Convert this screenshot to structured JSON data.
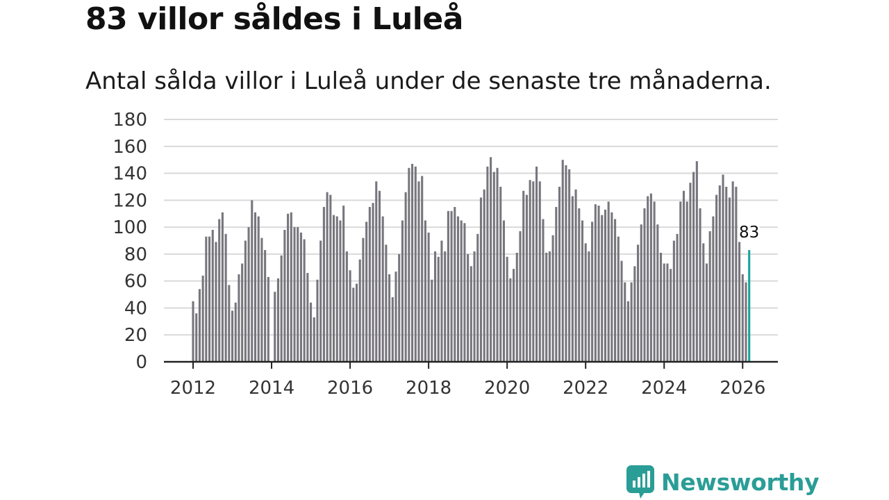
{
  "title": "83 villor såldes i Luleå",
  "subtitle": "Antal sålda villor i Luleå under de senaste tre månaderna.",
  "brand": {
    "name": "Newsworthy",
    "color": "#2a9d96"
  },
  "colors": {
    "bar": "#77767d",
    "highlight": "#1aa39a",
    "grid": "#d9d9d9",
    "axis": "#222222"
  },
  "chart_data": {
    "type": "bar",
    "title": "83 villor såldes i Luleå",
    "subtitle": "Antal sålda villor i Luleå under de senaste tre månaderna.",
    "xlabel": "",
    "ylabel": "",
    "ylim": [
      0,
      180
    ],
    "yticks": [
      0,
      20,
      40,
      60,
      80,
      100,
      120,
      140,
      160,
      180
    ],
    "xticks": [
      "2012",
      "2014",
      "2016",
      "2018",
      "2020",
      "2022",
      "2024",
      "2026"
    ],
    "grid": true,
    "start": "2012-01",
    "frequency": "monthly",
    "highlight": {
      "index": 170,
      "label": "83"
    },
    "values": [
      45,
      36,
      54,
      64,
      93,
      93,
      98,
      89,
      106,
      111,
      95,
      57,
      38,
      44,
      65,
      73,
      90,
      100,
      120,
      111,
      108,
      92,
      83,
      63,
      null,
      52,
      62,
      79,
      98,
      110,
      111,
      100,
      100,
      96,
      91,
      66,
      44,
      33,
      61,
      90,
      115,
      126,
      124,
      109,
      108,
      105,
      116,
      82,
      68,
      55,
      58,
      76,
      92,
      104,
      115,
      118,
      134,
      127,
      108,
      87,
      65,
      48,
      67,
      80,
      105,
      126,
      144,
      147,
      145,
      134,
      138,
      105,
      96,
      61,
      82,
      78,
      90,
      82,
      112,
      112,
      115,
      108,
      105,
      103,
      80,
      71,
      82,
      95,
      122,
      128,
      145,
      152,
      141,
      144,
      130,
      105,
      78,
      62,
      69,
      81,
      97,
      127,
      124,
      135,
      134,
      145,
      134,
      106,
      81,
      82,
      94,
      115,
      130,
      150,
      146,
      143,
      123,
      128,
      114,
      105,
      88,
      82,
      104,
      117,
      116,
      109,
      113,
      119,
      111,
      106,
      93,
      75,
      59,
      45,
      59,
      71,
      87,
      102,
      114,
      123,
      125,
      119,
      102,
      81,
      73,
      73,
      69,
      90,
      95,
      119,
      127,
      119,
      133,
      141,
      149,
      114,
      88,
      73,
      97,
      108,
      124,
      131,
      139,
      130,
      122,
      134,
      130,
      89,
      65,
      59,
      83
    ]
  }
}
